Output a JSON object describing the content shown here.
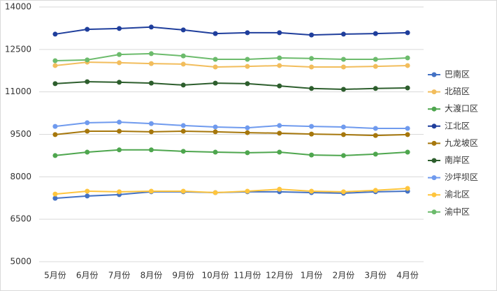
{
  "chart_data": {
    "type": "line",
    "categories": [
      "5月份",
      "6月份",
      "7月份",
      "8月份",
      "9月份",
      "10月份",
      "11月份",
      "12月份",
      "1月份",
      "2月份",
      "3月份",
      "4月份"
    ],
    "ylim": [
      5000,
      14000
    ],
    "yticks": [
      5000,
      6500,
      8000,
      9500,
      11000,
      12500,
      14000
    ],
    "grid": true,
    "legend": "right",
    "series": [
      {
        "name": "巴南区",
        "color": "#4472c4",
        "values": [
          7240,
          7320,
          7370,
          7470,
          7470,
          7440,
          7470,
          7470,
          7440,
          7420,
          7470,
          7490
        ]
      },
      {
        "name": "北碚区",
        "color": "#f2bd5c",
        "values": [
          11930,
          12050,
          12030,
          12000,
          11980,
          11880,
          11900,
          11930,
          11880,
          11880,
          11900,
          11930
        ]
      },
      {
        "name": "大渡口区",
        "color": "#4ea64e",
        "values": [
          8750,
          8870,
          8950,
          8950,
          8900,
          8870,
          8850,
          8870,
          8770,
          8750,
          8800,
          8870
        ]
      },
      {
        "name": "江北区",
        "color": "#1f3e9c",
        "values": [
          13040,
          13210,
          13240,
          13290,
          13190,
          13060,
          13090,
          13090,
          13010,
          13040,
          13060,
          13090
        ]
      },
      {
        "name": "九龙坡区",
        "color": "#a6770c",
        "values": [
          9490,
          9610,
          9610,
          9590,
          9610,
          9590,
          9560,
          9540,
          9510,
          9490,
          9460,
          9490
        ]
      },
      {
        "name": "南岸区",
        "color": "#2d5e2d",
        "values": [
          11290,
          11360,
          11340,
          11310,
          11240,
          11310,
          11290,
          11210,
          11120,
          11090,
          11120,
          11140
        ]
      },
      {
        "name": "沙坪坝区",
        "color": "#6f9aee",
        "values": [
          9780,
          9910,
          9930,
          9880,
          9810,
          9760,
          9730,
          9810,
          9780,
          9760,
          9710,
          9710
        ]
      },
      {
        "name": "渝北区",
        "color": "#ffc53d",
        "values": [
          7390,
          7490,
          7470,
          7490,
          7490,
          7440,
          7490,
          7560,
          7490,
          7470,
          7520,
          7590
        ]
      },
      {
        "name": "渝中区",
        "color": "#6cbb6c",
        "values": [
          12100,
          12130,
          12320,
          12350,
          12270,
          12150,
          12150,
          12200,
          12180,
          12150,
          12150,
          12200
        ]
      }
    ]
  }
}
